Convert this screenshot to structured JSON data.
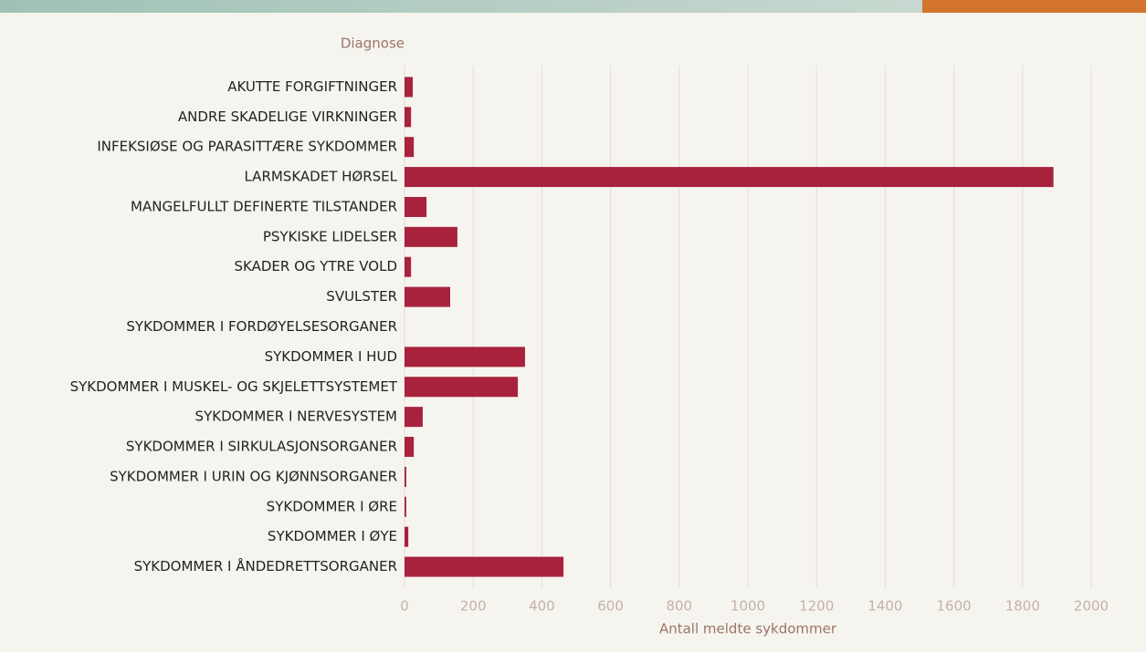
{
  "chart_data": {
    "type": "bar",
    "orientation": "horizontal",
    "y_axis_title": "Diagnose",
    "x_axis_title": "Antall meldte sykdommer",
    "categories": [
      "AKUTTE FORGIFTNINGER",
      "ANDRE SKADELIGE VIRKNINGER",
      "INFEKSIØSE OG PARASITTÆRE SYKDOMMER",
      "LARMSKADET HØRSEL",
      "MANGELFULLT DEFINERTE TILSTANDER",
      "PSYKISKE LIDELSER",
      "SKADER OG YTRE VOLD",
      "SVULSTER",
      "SYKDOMMER I FORDØYELSESORGANER",
      "SYKDOMMER I HUD",
      "SYKDOMMER I MUSKEL- OG SKJELETTSYSTEMET",
      "SYKDOMMER I NERVESYSTEM",
      "SYKDOMMER I SIRKULASJONSORGANER",
      "SYKDOMMER I URIN OG KJØNNSORGANER",
      "SYKDOMMER I ØRE",
      "SYKDOMMER I ØYE",
      "SYKDOMMER I ÅNDEDRETTSORGANER"
    ],
    "values": [
      24,
      19,
      27,
      1890,
      64,
      154,
      19,
      133,
      0,
      351,
      330,
      53,
      27,
      5,
      5,
      11,
      463
    ],
    "color": "#a8223e",
    "xlim": [
      0,
      2000
    ],
    "xticks": [
      0,
      200,
      400,
      600,
      800,
      1000,
      1200,
      1400,
      1600,
      1800,
      2000
    ],
    "grid": true
  }
}
